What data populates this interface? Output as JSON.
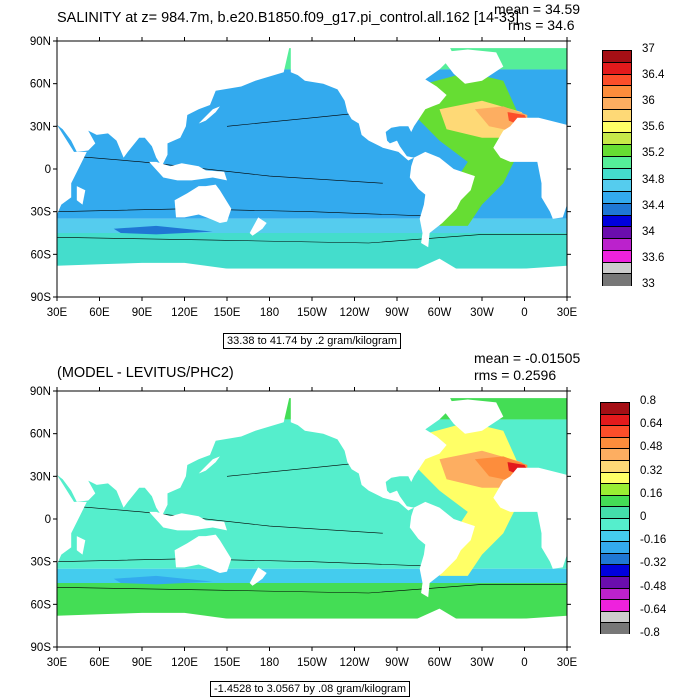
{
  "panels": [
    {
      "title": "SALINITY at z= 984.7m, b.e20.B1850.f09_g17.pi_control.all.162 [14-33]",
      "mean": "mean = 34.59",
      "rms": "rms = 34.6",
      "range_note": "33.38 to 41.74 by .2 gram/kilogram",
      "lat_labels": [
        "90N",
        "60N",
        "30N",
        "0",
        "30S",
        "60S",
        "90S"
      ],
      "lon_labels": [
        "30E",
        "60E",
        "90E",
        "120E",
        "150E",
        "180",
        "150W",
        "120W",
        "90W",
        "60W",
        "30W",
        "0",
        "30E"
      ],
      "colorbar_labels": [
        "37",
        "36.4",
        "36",
        "35.6",
        "35.2",
        "34.8",
        "34.4",
        "34",
        "33.6",
        "33"
      ],
      "colorbar_colors": [
        "#a50f15",
        "#e31a1c",
        "#fc4e2a",
        "#fd8d3c",
        "#fdae61",
        "#fed976",
        "#ffff66",
        "#c7e949",
        "#66dd33",
        "#55ee99",
        "#44ddcc",
        "#55ccee",
        "#33aaee",
        "#1f77d4",
        "#0000dd",
        "#6a0dad",
        "#bb22cc",
        "#ee22dd",
        "#cccccc",
        "#777777"
      ],
      "map_colors": {
        "ocean": "#33aaee",
        "arctic": "#55ee99",
        "south": "#44ddcc",
        "band": "#55ccee",
        "atlantic": "#66dd33",
        "hot": "#fed976",
        "hot2": "#fdae61",
        "core": "#fc4e2a",
        "deep": "#1f77d4"
      }
    },
    {
      "title": "(MODEL - LEVITUS/PHC2)",
      "mean": "mean = -0.01505",
      "rms": "rms = 0.2596",
      "range_note": "-1.4528 to 3.0567 by .08 gram/kilogram",
      "lat_labels": [
        "90N",
        "60N",
        "30N",
        "0",
        "30S",
        "60S",
        "90S"
      ],
      "lon_labels": [
        "30E",
        "60E",
        "90E",
        "120E",
        "150E",
        "180",
        "150W",
        "120W",
        "90W",
        "60W",
        "30W",
        "0",
        "30E"
      ],
      "colorbar_labels": [
        "0.8",
        "0.64",
        "0.48",
        "0.32",
        "0.16",
        "0",
        "-0.16",
        "-0.32",
        "-0.48",
        "-0.64",
        "-0.8"
      ],
      "colorbar_colors": [
        "#a50f15",
        "#e31a1c",
        "#fc4e2a",
        "#fd8d3c",
        "#fdae61",
        "#fed976",
        "#ffff66",
        "#99ee33",
        "#44dd55",
        "#44ddaa",
        "#55eecc",
        "#44ccee",
        "#33aaee",
        "#1f77d4",
        "#0000dd",
        "#6a0dad",
        "#bb22cc",
        "#ee22dd",
        "#cccccc",
        "#777777"
      ],
      "map_colors": {
        "ocean": "#55eecc",
        "arctic": "#44dd55",
        "south": "#44dd55",
        "band": "#44ccee",
        "atlantic": "#ffff66",
        "hot": "#fdae61",
        "hot2": "#fd8d3c",
        "core": "#e31a1c",
        "deep": "#33aaee"
      }
    }
  ]
}
